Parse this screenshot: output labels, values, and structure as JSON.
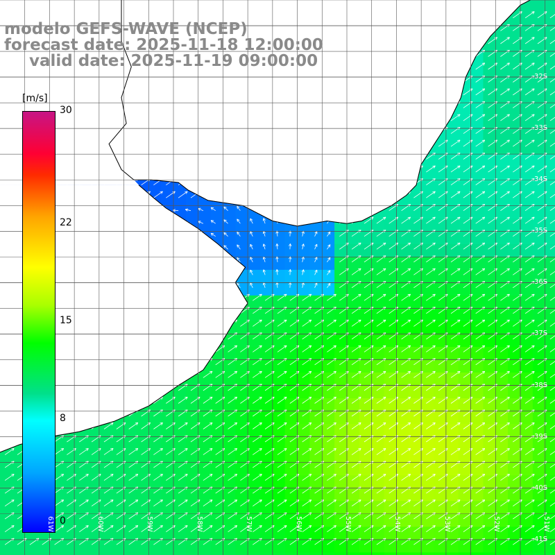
{
  "title": {
    "line1": "modelo GEFS-WAVE (NCEP)",
    "line2": "forecast date: 2025-11-18 12:00:00",
    "line3": "valid date: 2025-11-19 09:00:00"
  },
  "colorbar": {
    "unit": "[m/s]",
    "ticks": [
      "30",
      "22",
      "15",
      "8",
      "0"
    ],
    "tick_values": [
      30,
      22,
      15,
      8,
      0
    ],
    "range": [
      0,
      30
    ],
    "colors": [
      "#0000ff",
      "#00a5ff",
      "#00ffff",
      "#00e08a",
      "#00ff00",
      "#aaff00",
      "#ffff00",
      "#ffa500",
      "#ff2a00",
      "#ff0033",
      "#c71585"
    ]
  },
  "axes": {
    "lat_labels": [
      "32S",
      "33S",
      "34S",
      "35S",
      "36S",
      "37S",
      "38S",
      "39S",
      "40S",
      "41S"
    ],
    "lat_values": [
      -32,
      -33,
      -34,
      -35,
      -36,
      -37,
      -38,
      -39,
      -40,
      -41
    ],
    "lon_labels": [
      "61W",
      "60W",
      "59W",
      "58W",
      "57W",
      "56W",
      "55W",
      "54W",
      "53W",
      "52W",
      "51W"
    ],
    "lon_values": [
      -61,
      -60,
      -59,
      -58,
      -57,
      -56,
      -55,
      -54,
      -53,
      -52,
      -51
    ],
    "extent": {
      "lon_min": -62.0,
      "lon_max": -50.8,
      "lat_min": -41.3,
      "lat_max": -30.5
    },
    "grid": true
  },
  "map": {
    "variable": "wind speed and direction",
    "land_color": "#ffffff",
    "coast_color": "#000000",
    "grid_color": "#555555",
    "arrow_color": "#ffffff",
    "prevailing_wind": "northeastward",
    "max_speed_region": "south-east of Rio de la Plata, about 15 m/s"
  }
}
